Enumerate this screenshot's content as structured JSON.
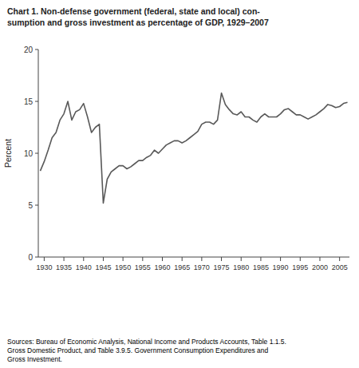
{
  "chart_data": {
    "type": "line",
    "title": "Chart 1. Non-defense government (federal, state and local) con-\nsumption and gross investment as percentage of GDP, 1929–2007",
    "y_label": "Percent",
    "annotations": [
      "Sources: Bureau of Economic Analysis, National Income and Products Accounts, Table 1.1.5.\nGross Domestic Product, and Table 3.9.5. Government Consumption Expenditures and\nGross Investment."
    ],
    "x": [
      1929,
      1930,
      1931,
      1932,
      1933,
      1934,
      1935,
      1936,
      1937,
      1938,
      1939,
      1940,
      1941,
      1942,
      1943,
      1944,
      1945,
      1946,
      1947,
      1948,
      1949,
      1950,
      1951,
      1952,
      1953,
      1954,
      1955,
      1956,
      1957,
      1958,
      1959,
      1960,
      1961,
      1962,
      1963,
      1964,
      1965,
      1966,
      1967,
      1968,
      1969,
      1970,
      1971,
      1972,
      1973,
      1974,
      1975,
      1976,
      1977,
      1978,
      1979,
      1980,
      1981,
      1982,
      1983,
      1984,
      1985,
      1986,
      1987,
      1988,
      1989,
      1990,
      1991,
      1992,
      1993,
      1994,
      1995,
      1996,
      1997,
      1998,
      1999,
      2000,
      2001,
      2002,
      2003,
      2004,
      2005,
      2006,
      2007
    ],
    "values": [
      8.3,
      9.2,
      10.3,
      11.5,
      12.0,
      13.2,
      13.8,
      15.0,
      13.2,
      14.0,
      14.2,
      14.8,
      13.5,
      12.0,
      12.5,
      12.8,
      5.2,
      7.5,
      8.2,
      8.5,
      8.8,
      8.8,
      8.5,
      8.7,
      9.0,
      9.3,
      9.3,
      9.6,
      9.8,
      10.3,
      10.0,
      10.4,
      10.8,
      11.0,
      11.2,
      11.2,
      11.0,
      11.2,
      11.5,
      11.8,
      12.1,
      12.8,
      13.0,
      13.0,
      12.8,
      13.2,
      15.8,
      14.7,
      14.2,
      13.8,
      13.7,
      14.0,
      13.5,
      13.5,
      13.2,
      13.0,
      13.5,
      13.8,
      13.5,
      13.5,
      13.5,
      13.8,
      14.2,
      14.3,
      14.0,
      13.7,
      13.7,
      13.5,
      13.3,
      13.5,
      13.7,
      14.0,
      14.3,
      14.7,
      14.6,
      14.4,
      14.5,
      14.8,
      14.9
    ],
    "color": "#595959",
    "xlim": [
      1928.5,
      2007.5
    ],
    "ylim": [
      0,
      20
    ],
    "xticks": [
      1930,
      1935,
      1940,
      1945,
      1950,
      1955,
      1960,
      1965,
      1970,
      1975,
      1980,
      1985,
      1990,
      1995,
      2000,
      2005
    ],
    "yticks": [
      0,
      5,
      10,
      15,
      20
    ],
    "grid": false
  }
}
